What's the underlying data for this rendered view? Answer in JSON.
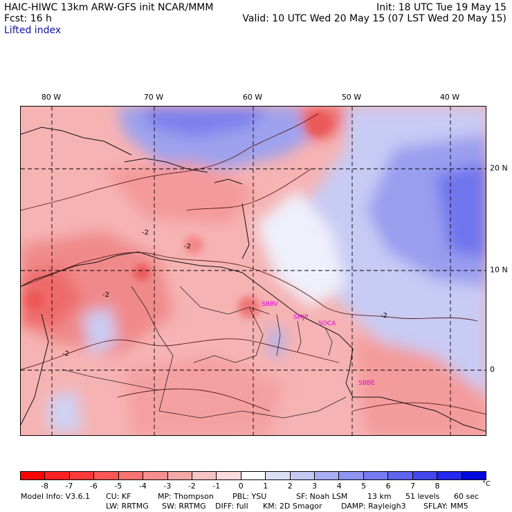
{
  "header": {
    "title_left": "HAIC-HIWC 13km ARW-GFS init   NCAR/MMM",
    "forecast": "Fcst:    16 h",
    "init": "Init: 18 UTC Tue 19 May 15",
    "valid": "Valid: 10 UTC Wed 20 May 15 (07 LST Wed 20 May 15)",
    "field": "Lifted index"
  },
  "map": {
    "lon_labels": [
      "80 W",
      "70 W",
      "60 W",
      "50 W",
      "40 W"
    ],
    "lat_labels": [
      "20 N",
      "10 N",
      "0"
    ],
    "contour_labels": [
      "-2",
      "-2",
      "-2",
      "-2",
      "-2"
    ],
    "stations": [
      "SBBV",
      "SMJP",
      "SOCA",
      "SBBE"
    ]
  },
  "colorbar": {
    "colors": [
      "#ff0000",
      "#ff2020",
      "#fd3a3a",
      "#fc5656",
      "#fa7272",
      "#f78e8e",
      "#f5a8a8",
      "#f7c4c4",
      "#fbdcdc",
      "#ffffff",
      "#dde0f5",
      "#c4c8f3",
      "#a9adf2",
      "#8f94f1",
      "#777bf0",
      "#5d62ef",
      "#4247ee",
      "#2228ec",
      "#0008e0"
    ],
    "labels": [
      "-8",
      "-7",
      "-6",
      "-5",
      "-4",
      "-3",
      "-2",
      "-1",
      "0",
      "1",
      "2",
      "3",
      "4",
      "5",
      "6",
      "7",
      "8"
    ],
    "unit": "°C"
  },
  "footer": {
    "line1": [
      "Model Info: V3.6.1",
      "CU: KF",
      "MP: Thompson",
      "PBL: YSU",
      "SF: Noah LSM",
      "13 km",
      "51 levels",
      "60 sec"
    ],
    "line2": [
      "LW: RRTMG",
      "SW: RRTMG",
      "DIFF: full",
      "KM: 2D Smagor",
      "DAMP: Rayleigh3",
      "SFLAY: MM5"
    ]
  }
}
